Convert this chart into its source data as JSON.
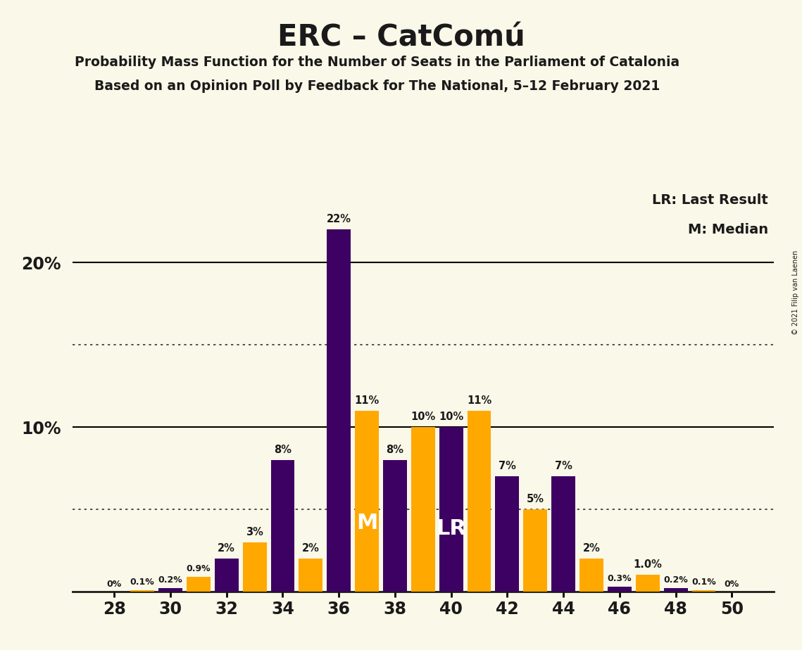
{
  "title": "ERC – CatComú",
  "subtitle1": "Probability Mass Function for the Number of Seats in the Parliament of Catalonia",
  "subtitle2": "Based on an Opinion Poll by Feedback for The National, 5–12 February 2021",
  "copyright": "© 2021 Filip van Laenen",
  "background_color": "#FAF8E8",
  "purple_color": "#3D0063",
  "orange_color": "#FFA800",
  "dark_text": "#1a1a1a",
  "seats": [
    28,
    29,
    30,
    31,
    32,
    33,
    34,
    35,
    36,
    37,
    38,
    39,
    40,
    41,
    42,
    43,
    44,
    45,
    46,
    47,
    48,
    49,
    50
  ],
  "values": [
    0.0,
    0.1,
    0.2,
    0.9,
    2.0,
    3.0,
    8.0,
    2.0,
    22.0,
    11.0,
    8.0,
    10.0,
    10.0,
    11.0,
    7.0,
    5.0,
    7.0,
    2.0,
    0.3,
    1.0,
    0.2,
    0.1,
    0.0
  ],
  "colors": [
    "P",
    "O",
    "P",
    "O",
    "P",
    "O",
    "P",
    "O",
    "P",
    "O",
    "P",
    "O",
    "P",
    "O",
    "P",
    "O",
    "P",
    "O",
    "P",
    "O",
    "P",
    "O",
    "P"
  ],
  "labels": [
    "0%",
    "0.1%",
    "0.2%",
    "0.9%",
    "2%",
    "3%",
    "8%",
    "2%",
    "22%",
    "11%",
    "8%",
    "10%",
    "10%",
    "11%",
    "7%",
    "5%",
    "7%",
    "2%",
    "0.3%",
    "1.0%",
    "0.2%",
    "0.1%",
    "0%"
  ],
  "median_seat_idx": 9,
  "lr_seat_idx": 12,
  "xtick_seats": [
    28,
    30,
    32,
    34,
    36,
    38,
    40,
    42,
    44,
    46,
    48,
    50
  ],
  "xlim": [
    26.5,
    51.5
  ],
  "ylim": [
    0,
    24.5
  ],
  "hlines_solid": [
    10.0,
    20.0
  ],
  "hlines_dotted": [
    5.0,
    15.0
  ],
  "note_lr": "LR: Last Result",
  "note_m": "M: Median",
  "bar_width": 0.85
}
